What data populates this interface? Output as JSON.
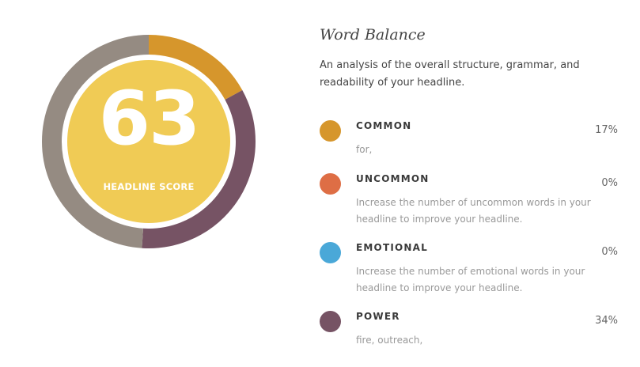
{
  "score": {
    "value": "63",
    "label": "HEADLINE SCORE",
    "color": "#F0CB55"
  },
  "donut": {
    "segments": [
      {
        "key": "common",
        "percent": 17,
        "color": "#D6962C"
      },
      {
        "key": "power",
        "percent": 34,
        "color": "#765364"
      },
      {
        "key": "rest",
        "percent": 49,
        "color": "#958B82"
      }
    ]
  },
  "panel": {
    "title": "Word Balance",
    "description": "An analysis of the overall structure, grammar, and readability of your headline."
  },
  "items": [
    {
      "name": "COMMON",
      "percent": "17%",
      "detail": "for,",
      "color": "#D6962C"
    },
    {
      "name": "UNCOMMON",
      "percent": "0%",
      "detail": "Increase the number of uncommon words in your headline to improve your headline.",
      "color": "#DE6E45"
    },
    {
      "name": "EMOTIONAL",
      "percent": "0%",
      "detail": "Increase the number of emotional words in your headline to improve your headline.",
      "color": "#4AA8D8"
    },
    {
      "name": "POWER",
      "percent": "34%",
      "detail": "fire, outreach,",
      "color": "#765364"
    }
  ]
}
